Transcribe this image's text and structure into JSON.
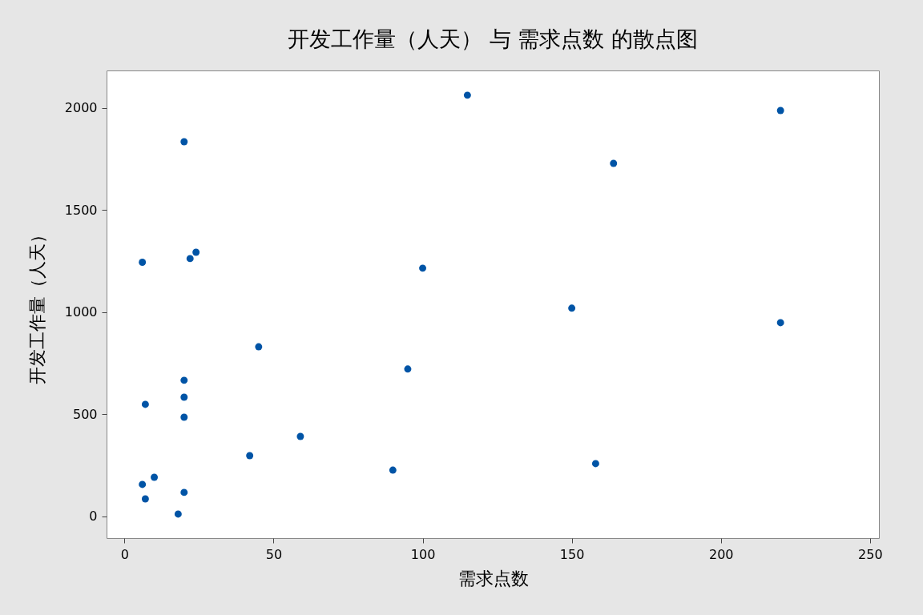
{
  "chart_data": {
    "type": "scatter",
    "title": "开发工作量（人天） 与 需求点数 的散点图",
    "xlabel": "需求点数",
    "ylabel": "开发工作量（人天）",
    "series": [
      {
        "color": "#0054a6",
        "x": [
          6,
          20,
          22,
          24,
          7,
          20,
          20,
          20,
          6,
          10,
          7,
          20,
          18,
          42,
          45,
          59,
          90,
          95,
          100,
          115,
          150,
          158,
          164,
          220,
          220
        ],
        "values": [
          1245,
          1835,
          1263,
          1294,
          549,
          667,
          584,
          486,
          157,
          192,
          86,
          118,
          12,
          298,
          831,
          392,
          227,
          722,
          1216,
          2063,
          1020,
          259,
          1729,
          1988,
          949
        ]
      }
    ],
    "xlim": [
      -6,
      253
    ],
    "ylim": [
      -106,
      2184
    ],
    "xticks": [
      0,
      50,
      100,
      150,
      200,
      250
    ],
    "yticks": [
      0,
      500,
      1000,
      1500,
      2000
    ],
    "marker": "circle",
    "grid": false
  }
}
